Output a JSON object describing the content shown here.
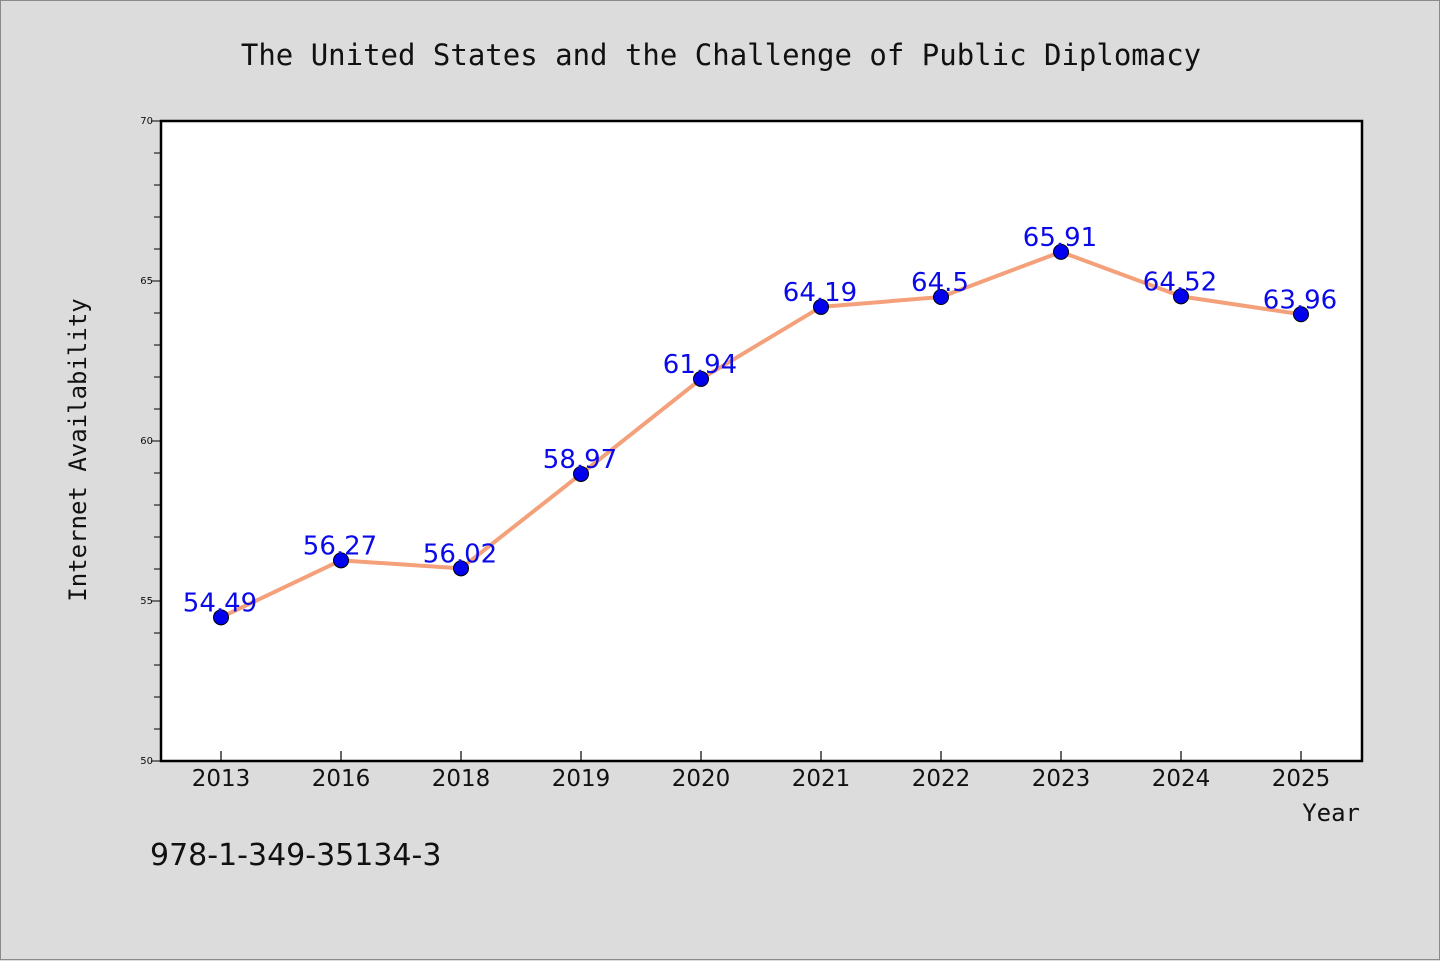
{
  "chart_data": {
    "type": "line",
    "title": "The United States and the Challenge of Public Diplomacy",
    "xlabel": "Year",
    "ylabel": "Internet Availability",
    "categories": [
      "2013",
      "2016",
      "2018",
      "2019",
      "2020",
      "2021",
      "2022",
      "2023",
      "2024",
      "2025"
    ],
    "values": [
      54.49,
      56.27,
      56.02,
      58.97,
      61.94,
      64.19,
      64.5,
      65.91,
      64.52,
      63.96
    ],
    "data_labels": [
      "54.49",
      "56.27",
      "56.02",
      "58.97",
      "61.94",
      "64.19",
      "64.5",
      "65.91",
      "64.52",
      "63.96"
    ],
    "ylim": [
      50,
      70
    ],
    "yticks": [
      "50",
      "55",
      "60",
      "65",
      "70"
    ],
    "grid": false,
    "legend": "none",
    "colors": {
      "line": "#f4a07a",
      "marker": "#0000ee",
      "label": "#0a0ae8",
      "background": "#dcdcdc",
      "plot_background": "#ffffff"
    }
  },
  "footer": {
    "isbn": "978-1-349-35134-3"
  }
}
